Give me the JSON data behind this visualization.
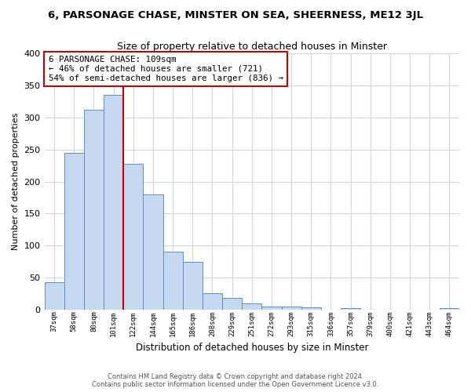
{
  "title": "6, PARSONAGE CHASE, MINSTER ON SEA, SHEERNESS, ME12 3JL",
  "subtitle": "Size of property relative to detached houses in Minster",
  "xlabel": "Distribution of detached houses by size in Minster",
  "ylabel": "Number of detached properties",
  "bar_labels": [
    "37sqm",
    "58sqm",
    "80sqm",
    "101sqm",
    "122sqm",
    "144sqm",
    "165sqm",
    "186sqm",
    "208sqm",
    "229sqm",
    "251sqm",
    "272sqm",
    "293sqm",
    "315sqm",
    "336sqm",
    "357sqm",
    "379sqm",
    "400sqm",
    "421sqm",
    "443sqm",
    "464sqm"
  ],
  "bar_values": [
    43,
    245,
    312,
    335,
    227,
    180,
    91,
    75,
    26,
    18,
    10,
    5,
    5,
    4,
    0,
    3,
    0,
    0,
    0,
    0,
    3
  ],
  "bar_color": "#c5d8f0",
  "bar_edge_color": "#5b8fc7",
  "vline_x": 4.0,
  "vline_color": "#cc0000",
  "annotation_text": "6 PARSONAGE CHASE: 109sqm\n← 46% of detached houses are smaller (721)\n54% of semi-detached houses are larger (836) →",
  "annotation_box_color": "#ffffff",
  "annotation_box_edge": "#cc0000",
  "ylim": [
    0,
    400
  ],
  "yticks": [
    0,
    50,
    100,
    150,
    200,
    250,
    300,
    350,
    400
  ],
  "footer": "Contains HM Land Registry data © Crown copyright and database right 2024.\nContains public sector information licensed under the Open Government Licence v3.0.",
  "bg_color": "#ffffff",
  "plot_bg_color": "#ffffff",
  "grid_color": "#d0d8e8"
}
